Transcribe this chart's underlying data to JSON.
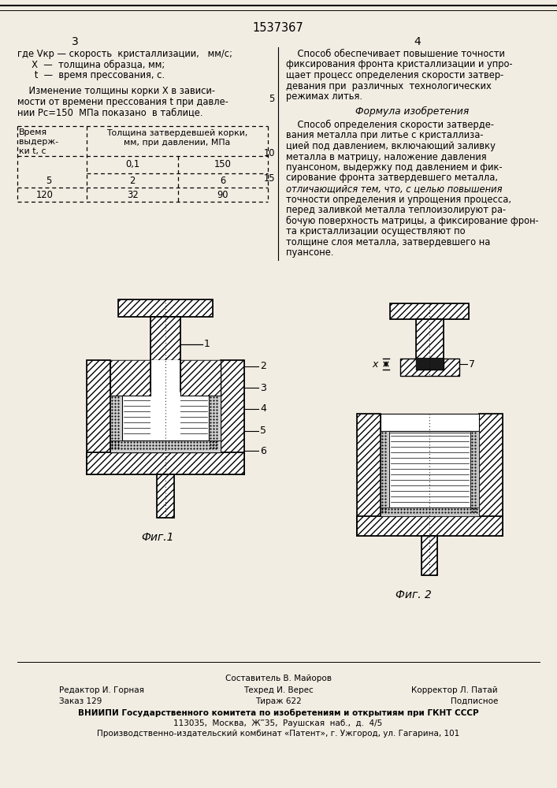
{
  "bg_color": "#f2ede3",
  "page_width": 7.07,
  "page_height": 10.0,
  "title": "1537367",
  "col_left": "3",
  "col_right": "4",
  "footer_line1_center": "Составитель В. Майоров",
  "footer_line2_left": "Редактор И. Горная",
  "footer_line2_center": "Техред И. Верес",
  "footer_line2_right": "Корректор Л. Патай",
  "footer_line3_left": "Заказ 129",
  "footer_line3_center": "Тираж 622",
  "footer_line3_right": "Подписное",
  "footer_line4": "ВНИИПИ Государственного комитета по изобретениям и открытиям при ГКНТ СССР",
  "footer_line5": "113035,  Москва,  Ж‴35,  Раушская  наб.,  д.  4/5",
  "footer_line6": "Производственно-издательский комбинат «Патент», г. Ужгород, ул. Гагарина, 101",
  "fig1_caption": "Фиг.1",
  "fig2_caption": "Фиг. 2"
}
